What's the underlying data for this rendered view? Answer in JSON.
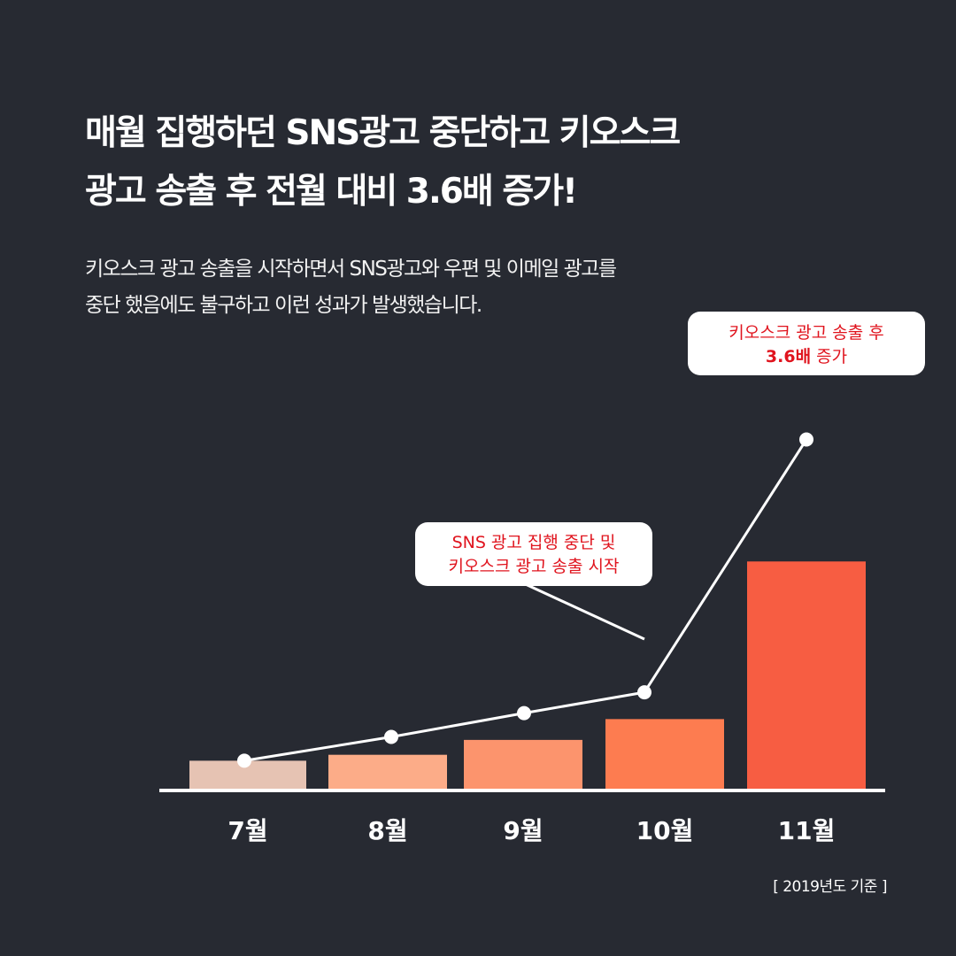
{
  "headline": {
    "line1": "매월 집행하던 SNS광고 중단하고 키오스크",
    "line2": "광고 송출 후 전월 대비 3.6배 증가!"
  },
  "description": {
    "line1": "키오스크 광고 송출을 시작하면서 SNS광고와 우편 및 이메일 광고를",
    "line2": "중단 했음에도 불구하고 이런 성과가 발생했습니다."
  },
  "callouts": {
    "start": {
      "line1": "SNS 광고 집행 중단 및",
      "line2": "키오스크 광고 송출 시작"
    },
    "result": {
      "line1": "키오스크 광고 송출 후",
      "line2_strong": "3.6배",
      "line2_rest": " 증가"
    }
  },
  "source_note": "[ 2019년도 기준 ]",
  "colors": {
    "background": "#272a32",
    "line": "#ffffff",
    "callout_text": "#e0141e",
    "bars": [
      "#e6c3b3",
      "#fcac88",
      "#fc946d",
      "#fd7c50",
      "#f75d42"
    ]
  },
  "chart_data": {
    "type": "bar",
    "categories": [
      "7월",
      "8월",
      "9월",
      "10월",
      "11월"
    ],
    "values": [
      1,
      1.2,
      1.7,
      2.4,
      7.7
    ],
    "line_values": [
      1,
      1.8,
      2.6,
      3.3,
      11.8
    ],
    "ylim": [
      0,
      12.5
    ],
    "grid": false,
    "legend": "none"
  }
}
